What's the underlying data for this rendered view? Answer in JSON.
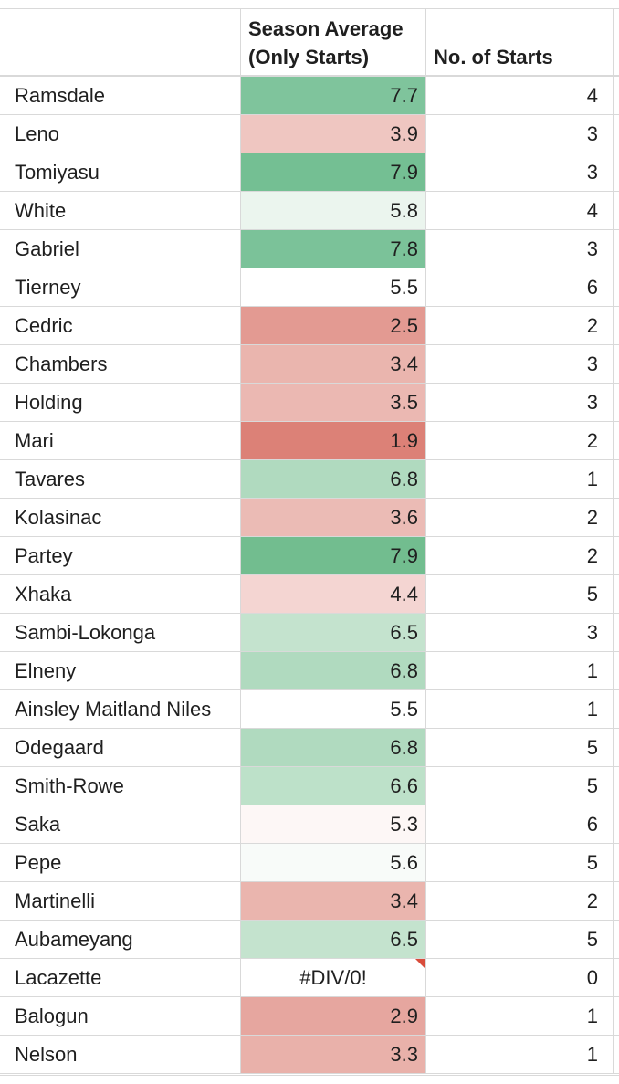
{
  "header": {
    "season_average_line1": "Season Average",
    "season_average_line2": "(Only Starts)",
    "no_of_starts": "No. of Starts"
  },
  "rows": [
    {
      "name": "Ramsdale",
      "avg": "7.7",
      "starts": "4",
      "color": "#7fc49c"
    },
    {
      "name": "Leno",
      "avg": "3.9",
      "starts": "3",
      "color": "#efc6c1"
    },
    {
      "name": "Tomiyasu",
      "avg": "7.9",
      "starts": "3",
      "color": "#74bf93"
    },
    {
      "name": "White",
      "avg": "5.8",
      "starts": "4",
      "color": "#ebf5ee"
    },
    {
      "name": "Gabriel",
      "avg": "7.8",
      "starts": "3",
      "color": "#7bc299"
    },
    {
      "name": "Tierney",
      "avg": "5.5",
      "starts": "6",
      "color": "#ffffff"
    },
    {
      "name": "Cedric",
      "avg": "2.5",
      "starts": "2",
      "color": "#e39a92"
    },
    {
      "name": "Chambers",
      "avg": "3.4",
      "starts": "3",
      "color": "#eab5ae"
    },
    {
      "name": "Holding",
      "avg": "3.5",
      "starts": "3",
      "color": "#ebb8b2"
    },
    {
      "name": "Mari",
      "avg": "1.9",
      "starts": "2",
      "color": "#dc8177"
    },
    {
      "name": "Tavares",
      "avg": "6.8",
      "starts": "1",
      "color": "#b0dabf"
    },
    {
      "name": "Kolasinac",
      "avg": "3.6",
      "starts": "2",
      "color": "#ebbbb5"
    },
    {
      "name": "Partey",
      "avg": "7.9",
      "starts": "2",
      "color": "#72bd8f"
    },
    {
      "name": "Xhaka",
      "avg": "4.4",
      "starts": "5",
      "color": "#f4d5d2"
    },
    {
      "name": "Sambi-Lokonga",
      "avg": "6.5",
      "starts": "3",
      "color": "#c4e3ce"
    },
    {
      "name": "Elneny",
      "avg": "6.8",
      "starts": "1",
      "color": "#b0dabf"
    },
    {
      "name": "Ainsley Maitland Niles",
      "avg": "5.5",
      "starts": "1",
      "color": "#ffffff"
    },
    {
      "name": "Odegaard",
      "avg": "6.8",
      "starts": "5",
      "color": "#b0dabf"
    },
    {
      "name": "Smith-Rowe",
      "avg": "6.6",
      "starts": "5",
      "color": "#bde1c9"
    },
    {
      "name": "Saka",
      "avg": "5.3",
      "starts": "6",
      "color": "#fdf7f6"
    },
    {
      "name": "Pepe",
      "avg": "5.6",
      "starts": "5",
      "color": "#f8fbf9"
    },
    {
      "name": "Martinelli",
      "avg": "3.4",
      "starts": "2",
      "color": "#eab5ae"
    },
    {
      "name": "Aubameyang",
      "avg": "6.5",
      "starts": "5",
      "color": "#c4e3ce"
    },
    {
      "name": "Lacazette",
      "avg": "#DIV/0!",
      "starts": "0",
      "color": "#ffffff",
      "error": true
    },
    {
      "name": "Balogun",
      "avg": "2.9",
      "starts": "1",
      "color": "#e6a69f"
    },
    {
      "name": "Nelson",
      "avg": "3.3",
      "starts": "1",
      "color": "#e9b1aa"
    }
  ]
}
